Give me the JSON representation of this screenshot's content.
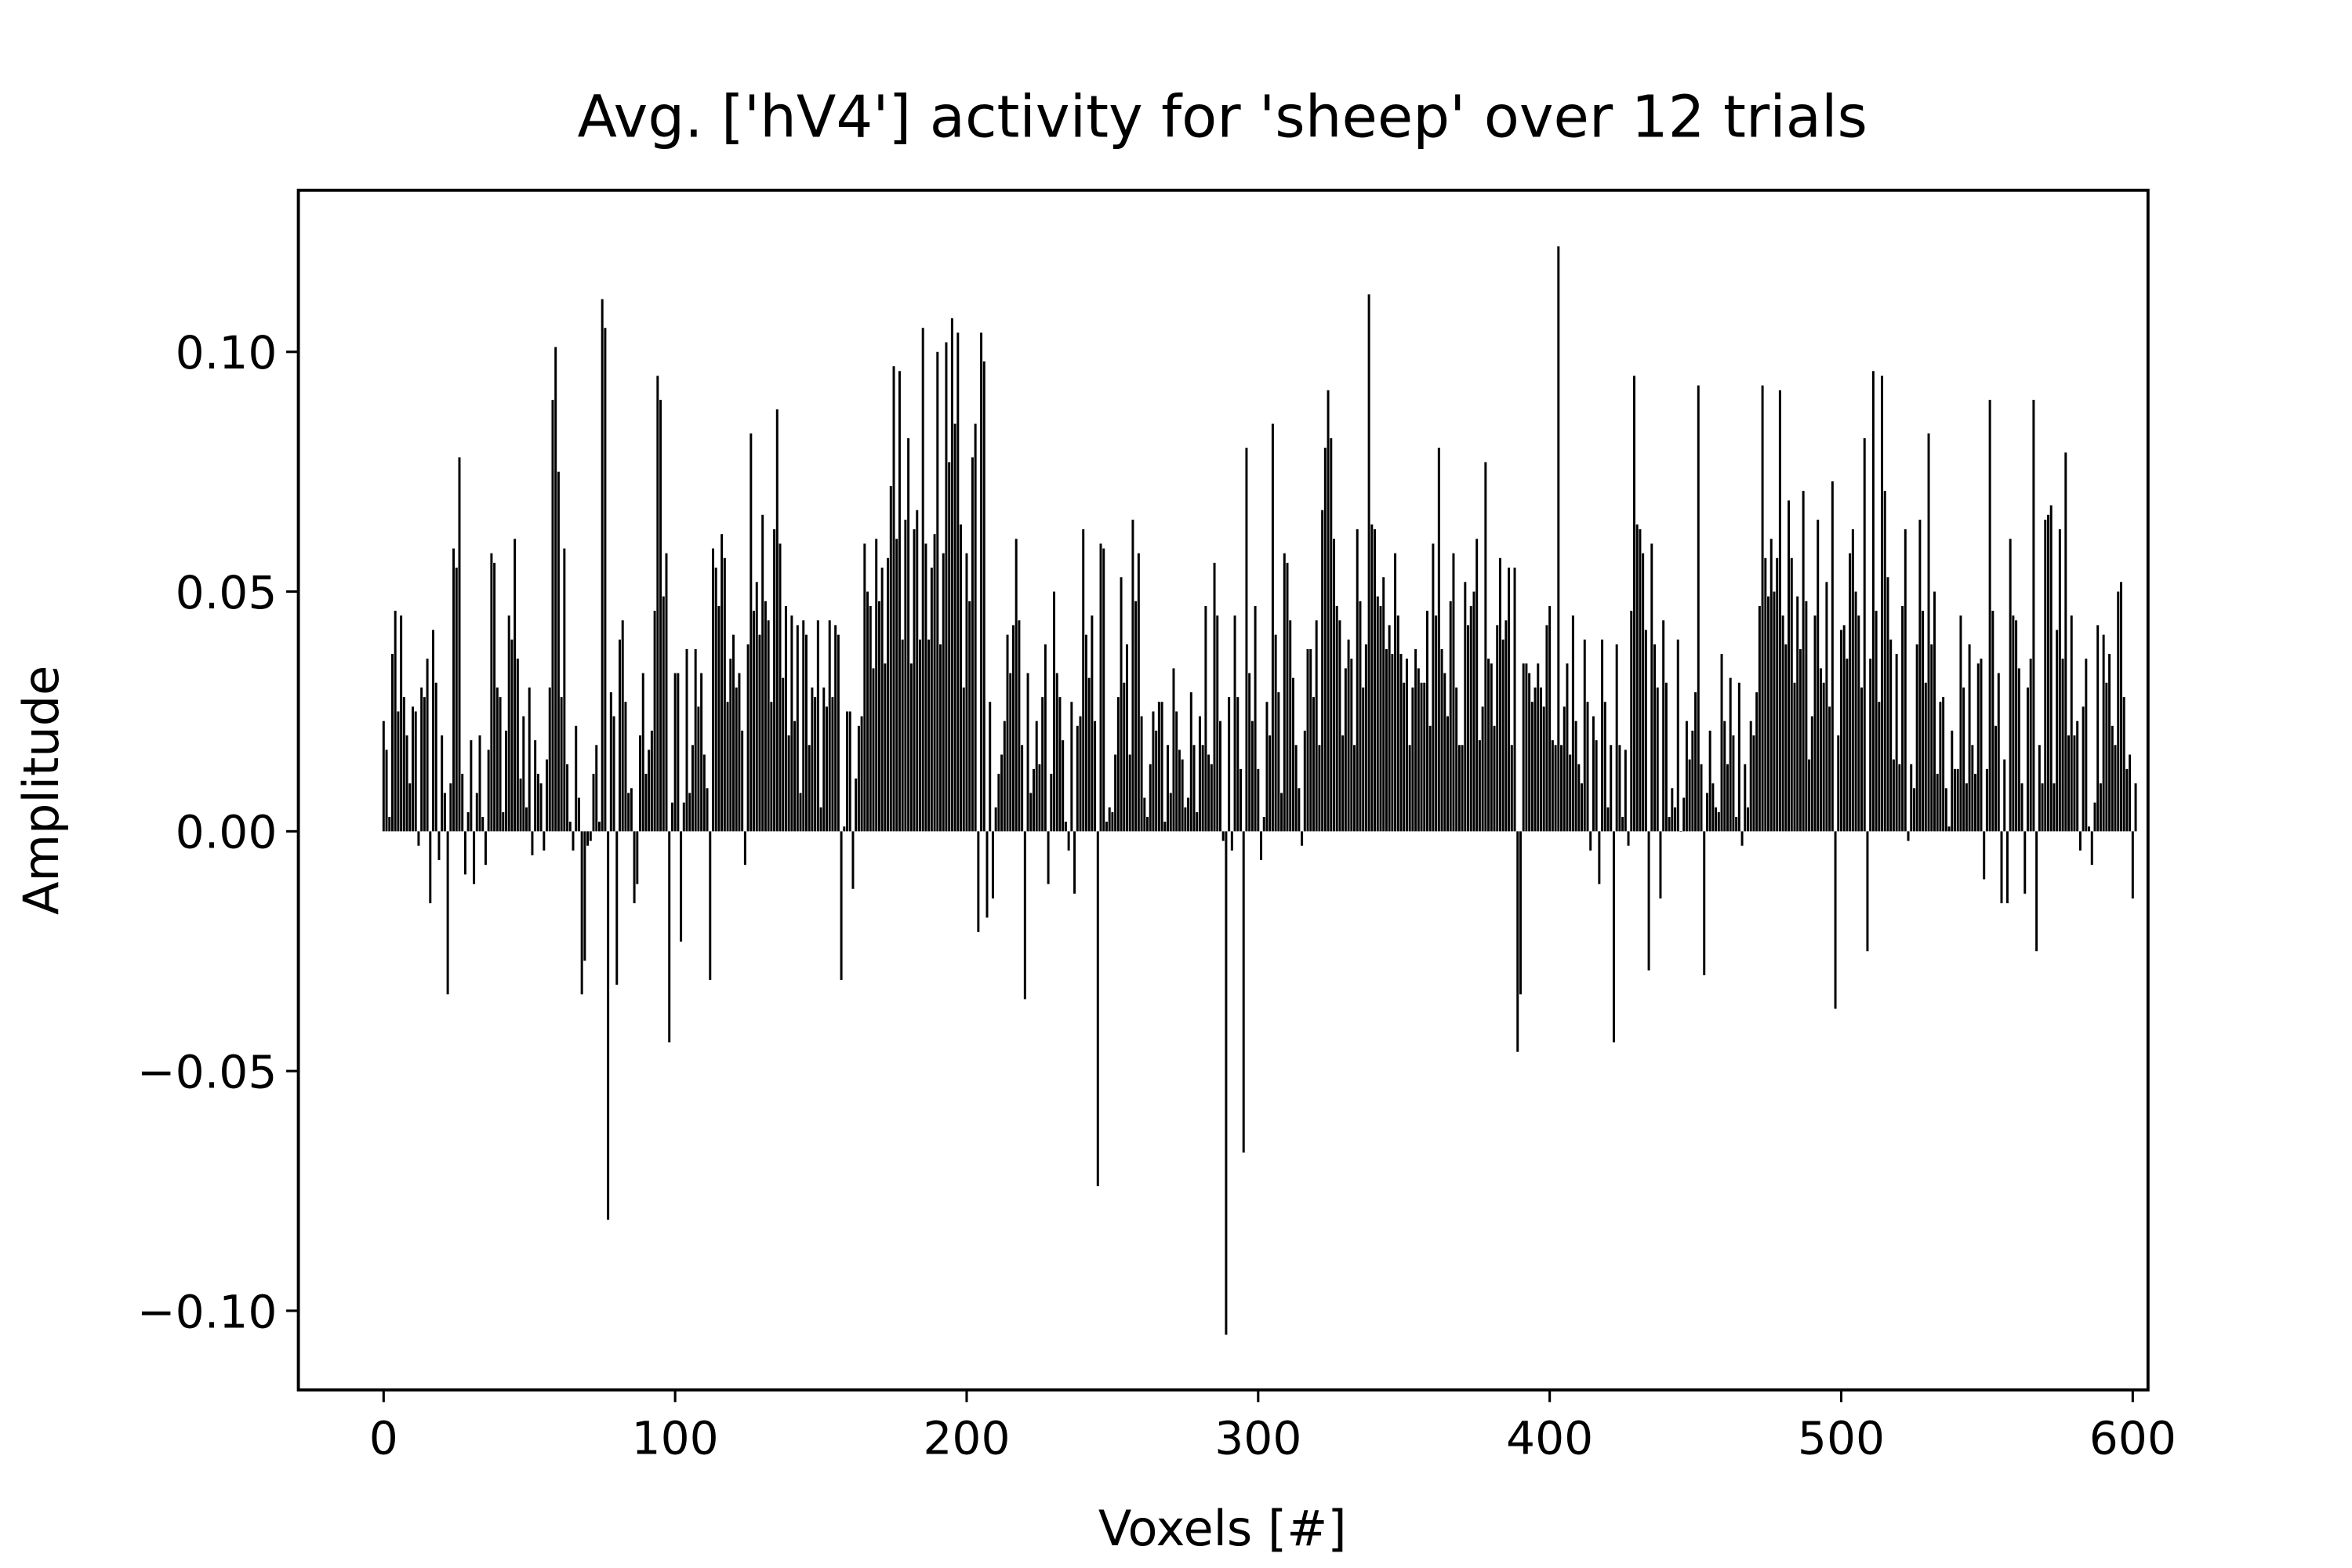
{
  "chart_data": {
    "type": "bar",
    "title": "Avg. ['hV4'] activity for 'sheep' over 12 trials",
    "xlabel": "Voxels [#]",
    "ylabel": "Amplitude",
    "color": "#000000",
    "xlim": [
      -29.24,
      605.24
    ],
    "ylim": [
      -0.1165,
      0.1337
    ],
    "xticks": [
      0,
      100,
      200,
      300,
      400,
      500,
      600
    ],
    "yticks": [
      {
        "value": -0.1,
        "label": "−0.10"
      },
      {
        "value": -0.05,
        "label": "−0.05"
      },
      {
        "value": 0,
        "label": "0.00"
      },
      {
        "value": 0.05,
        "label": "0.05"
      },
      {
        "value": 0.1,
        "label": "0.10"
      }
    ],
    "values": [
      0.023,
      0.017,
      0.003,
      0.037,
      0.046,
      0.025,
      0.045,
      0.028,
      0.02,
      0.01,
      0.026,
      0.025,
      -0.003,
      0.03,
      0.028,
      0.036,
      -0.015,
      0.042,
      0.031,
      -0.006,
      0.02,
      0.008,
      -0.034,
      0.01,
      0.059,
      0.055,
      0.078,
      0.012,
      -0.009,
      0.004,
      0.019,
      -0.011,
      0.008,
      0.02,
      0.003,
      -0.007,
      0.017,
      0.058,
      0.056,
      0.03,
      0.028,
      0.004,
      0.021,
      0.045,
      0.04,
      0.061,
      0.036,
      0.011,
      0.024,
      0.005,
      0.03,
      -0.005,
      0.019,
      0.012,
      0.01,
      -0.004,
      0.015,
      0.03,
      0.09,
      0.101,
      0.075,
      0.028,
      0.059,
      0.014,
      0.002,
      -0.004,
      0.022,
      0.007,
      -0.034,
      -0.027,
      -0.003,
      -0.002,
      0.012,
      0.018,
      0.002,
      0.111,
      0.105,
      -0.081,
      0.029,
      0.024,
      -0.032,
      0.04,
      0.044,
      0.027,
      0.008,
      0.009,
      -0.015,
      -0.011,
      0.02,
      0.033,
      0.012,
      0.017,
      0.021,
      0.046,
      0.095,
      0.09,
      0.049,
      0.058,
      -0.044,
      0.006,
      0.033,
      0.033,
      -0.023,
      0.006,
      0.038,
      0.008,
      0.018,
      0.038,
      0.026,
      0.033,
      0.016,
      0.009,
      -0.031,
      0.059,
      0.055,
      0.047,
      0.062,
      0.057,
      0.027,
      0.036,
      0.041,
      0.03,
      0.033,
      0.021,
      -0.007,
      0.039,
      0.083,
      0.046,
      0.052,
      0.041,
      0.066,
      0.048,
      0.044,
      0.027,
      0.063,
      0.088,
      0.06,
      0.032,
      0.047,
      0.02,
      0.045,
      0.023,
      0.043,
      0.008,
      0.044,
      0.041,
      0.018,
      0.03,
      0.028,
      0.044,
      0.005,
      0.03,
      0.026,
      0.044,
      0.028,
      0.043,
      0.041,
      -0.031,
      0.001,
      0.025,
      0.025,
      -0.012,
      0.011,
      0.022,
      0.024,
      0.06,
      0.05,
      0.047,
      0.034,
      0.061,
      0.048,
      0.055,
      0.035,
      0.057,
      0.072,
      0.097,
      0.061,
      0.096,
      0.04,
      0.065,
      0.082,
      0.035,
      0.063,
      0.067,
      0.04,
      0.105,
      0.06,
      0.04,
      0.055,
      0.062,
      0.1,
      0.039,
      0.058,
      0.102,
      0.077,
      0.107,
      0.085,
      0.104,
      0.064,
      0.03,
      0.058,
      0.048,
      0.078,
      0.085,
      -0.021,
      0.104,
      0.098,
      -0.018,
      0.027,
      -0.014,
      0.005,
      0.012,
      0.016,
      0.023,
      0.041,
      0.033,
      0.043,
      0.061,
      0.044,
      0.018,
      -0.035,
      0.033,
      0.008,
      0.013,
      0.023,
      0.014,
      0.028,
      0.039,
      -0.011,
      0.012,
      0.05,
      0.033,
      0.028,
      0.019,
      0.002,
      -0.004,
      0.027,
      -0.013,
      0.022,
      0.024,
      0.063,
      0.041,
      0.032,
      0.045,
      0.023,
      -0.074,
      0.06,
      0.059,
      0.002,
      0.005,
      0.004,
      0.016,
      0.028,
      0.053,
      0.031,
      0.039,
      0.016,
      0.065,
      0.048,
      0.058,
      0.024,
      0.007,
      0.003,
      0.014,
      0.025,
      0.021,
      0.027,
      0.027,
      0.002,
      0.018,
      0.008,
      0.034,
      0.025,
      0.017,
      0.015,
      0.005,
      0.007,
      0.029,
      0.018,
      0.004,
      0.024,
      0.018,
      0.047,
      0.016,
      0.014,
      0.056,
      0.045,
      0.023,
      -0.002,
      -0.105,
      0.028,
      -0.004,
      0.045,
      0.028,
      0.013,
      -0.067,
      0.08,
      0.033,
      0.023,
      0.047,
      0.013,
      -0.006,
      0.003,
      0.027,
      0.02,
      0.085,
      0.041,
      0.029,
      0.008,
      0.058,
      0.056,
      0.044,
      0.032,
      0.018,
      0.009,
      -0.003,
      0.021,
      0.038,
      0.038,
      0.028,
      0.044,
      0.018,
      0.067,
      0.08,
      0.092,
      0.082,
      0.061,
      0.047,
      0.044,
      0.02,
      0.034,
      0.04,
      0.036,
      0.018,
      0.063,
      0.048,
      0.03,
      0.039,
      0.112,
      0.064,
      0.063,
      0.049,
      0.047,
      0.053,
      0.038,
      0.043,
      0.037,
      0.058,
      0.045,
      0.037,
      0.031,
      0.036,
      0.018,
      0.03,
      0.038,
      0.034,
      0.031,
      0.031,
      0.046,
      0.022,
      0.06,
      0.045,
      0.08,
      0.038,
      0.033,
      0.024,
      0.048,
      0.058,
      0.03,
      0.018,
      0.018,
      0.052,
      0.043,
      0.047,
      0.05,
      0.061,
      0.019,
      0.026,
      0.077,
      0.036,
      0.035,
      0.022,
      0.043,
      0.057,
      0.04,
      0.044,
      0.055,
      0.018,
      0.055,
      -0.046,
      -0.034,
      0.035,
      0.035,
      0.033,
      0.027,
      0.03,
      0.035,
      0.03,
      0.026,
      0.043,
      0.047,
      0.019,
      0.018,
      0.122,
      0.018,
      0.026,
      0.035,
      0.016,
      0.045,
      0.023,
      0.014,
      0.01,
      0.04,
      0.027,
      -0.004,
      0.024,
      0.019,
      -0.011,
      0.04,
      0.027,
      0.005,
      0.018,
      -0.044,
      0.039,
      0.018,
      0.003,
      0.017,
      -0.003,
      0.046,
      0.095,
      0.064,
      0.063,
      0.058,
      0.042,
      -0.029,
      0.06,
      0.039,
      0.03,
      -0.014,
      0.044,
      0.031,
      0.003,
      0.009,
      0.005,
      0.04,
      0.0,
      0.007,
      0.023,
      0.015,
      0.021,
      0.029,
      0.093,
      0.014,
      -0.03,
      0.008,
      0.021,
      0.01,
      0.005,
      0.004,
      0.037,
      0.023,
      0.014,
      0.032,
      0.02,
      0.003,
      0.031,
      -0.003,
      0.014,
      0.005,
      0.023,
      0.02,
      0.029,
      0.047,
      0.093,
      0.057,
      0.049,
      0.061,
      0.05,
      0.057,
      0.092,
      0.045,
      0.039,
      0.069,
      0.057,
      0.031,
      0.049,
      0.038,
      0.071,
      0.048,
      0.015,
      0.024,
      0.045,
      0.065,
      0.034,
      0.031,
      0.052,
      0.026,
      0.073,
      -0.037,
      0.02,
      0.042,
      0.043,
      0.036,
      0.058,
      0.063,
      0.05,
      0.045,
      0.03,
      0.082,
      -0.025,
      0.036,
      0.096,
      0.046,
      0.027,
      0.095,
      0.071,
      0.053,
      0.04,
      0.015,
      0.037,
      0.014,
      0.047,
      0.063,
      -0.002,
      0.014,
      0.009,
      0.039,
      0.065,
      0.046,
      0.031,
      0.083,
      0.039,
      0.05,
      0.012,
      0.027,
      0.028,
      0.009,
      0.001,
      0.021,
      0.013,
      0.013,
      0.045,
      0.03,
      0.01,
      0.039,
      0.018,
      0.012,
      0.035,
      0.036,
      -0.01,
      0.013,
      0.09,
      0.046,
      0.022,
      0.033,
      -0.015,
      0.015,
      -0.015,
      0.061,
      0.045,
      0.044,
      0.034,
      0.01,
      -0.013,
      0.03,
      0.036,
      0.09,
      -0.025,
      0.018,
      0.01,
      0.065,
      0.066,
      0.068,
      0.01,
      0.042,
      0.063,
      0.036,
      0.079,
      0.02,
      0.045,
      0.02,
      0.023,
      -0.004,
      0.026,
      0.036,
      0.001,
      -0.007,
      0.006,
      0.043,
      0.01,
      0.041,
      0.031,
      0.037,
      0.022,
      0.018,
      0.05,
      0.052,
      0.028,
      0.013,
      0.016,
      -0.014,
      0.01
    ]
  }
}
